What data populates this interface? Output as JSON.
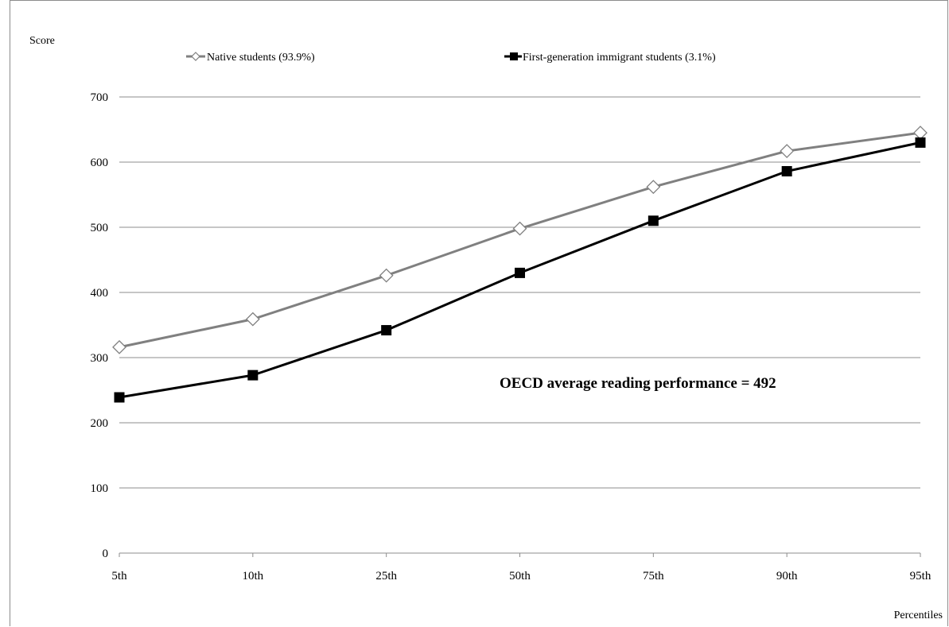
{
  "chart_data": {
    "type": "line",
    "ylabel": "Score",
    "xlabel": "Percentiles",
    "categories": [
      "5th",
      "10th",
      "25th",
      "50th",
      "75th",
      "90th",
      "95th"
    ],
    "ylim": [
      0,
      700
    ],
    "yticks": [
      0,
      100,
      200,
      300,
      400,
      500,
      600,
      700
    ],
    "grid": "horizontal",
    "legend_placement": "top",
    "series": [
      {
        "name": "Native students (93.9%)",
        "values": [
          316,
          359,
          426,
          498,
          562,
          617,
          645
        ],
        "color": "#808080",
        "marker": "open-diamond"
      },
      {
        "name": "First-generation immigrant students (3.1%)",
        "values": [
          239,
          273,
          342,
          430,
          510,
          586,
          630
        ],
        "color": "#000000",
        "marker": "filled-square"
      }
    ],
    "annotations": [
      {
        "text": "OECD average reading performance  = 492"
      }
    ]
  }
}
